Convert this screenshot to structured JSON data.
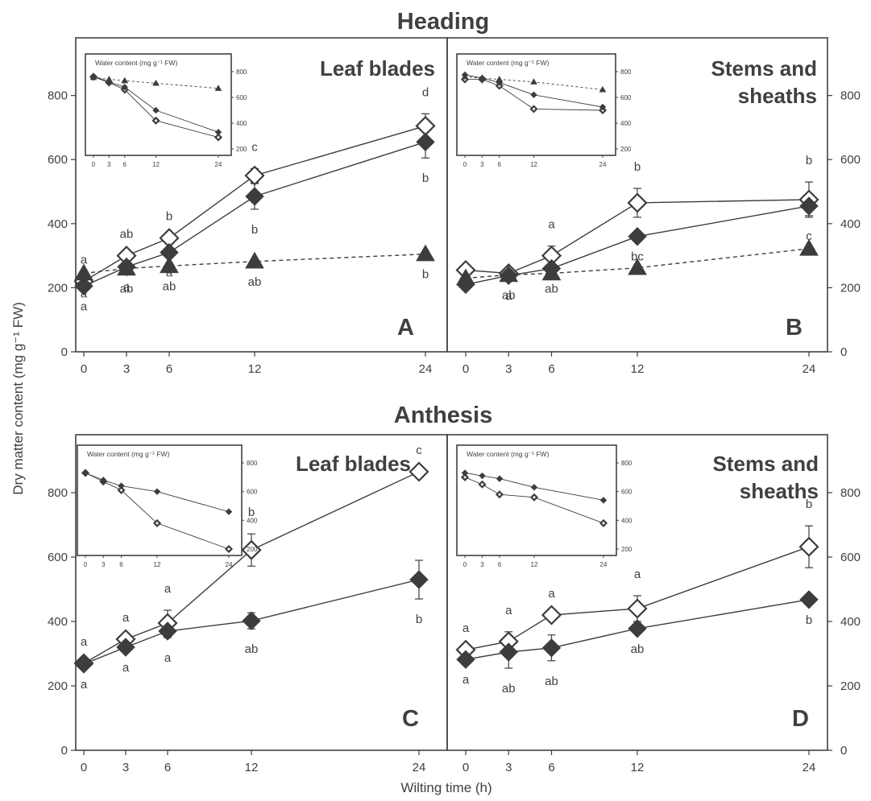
{
  "figure": {
    "xlabel": "Wilting time (h)",
    "ylabel": "Dry matter content (mg g⁻¹ FW)",
    "row_titles": [
      "Heading",
      "Anthesis"
    ]
  },
  "chart_data": [
    {
      "id": "A",
      "row": "Heading",
      "type": "line",
      "title": "Leaf blades",
      "x": [
        0,
        3,
        6,
        12,
        24
      ],
      "xlim": [
        0,
        24
      ],
      "ylim": [
        0,
        980
      ],
      "yticks": [
        0,
        200,
        400,
        600,
        800
      ],
      "series": [
        {
          "marker": "diamond-open",
          "values": [
            220,
            300,
            355,
            550,
            705
          ],
          "err": [
            0,
            0,
            0,
            22,
            38
          ],
          "labels": [
            "a",
            "ab",
            "b",
            "c",
            "d"
          ]
        },
        {
          "marker": "diamond-filled",
          "values": [
            205,
            265,
            310,
            485,
            655
          ],
          "err": [
            0,
            0,
            0,
            40,
            50
          ],
          "labels": [
            "a",
            "a",
            "a",
            "b",
            "b"
          ]
        },
        {
          "marker": "triangle-filled",
          "dashed": true,
          "values": [
            245,
            260,
            268,
            282,
            305
          ],
          "err": [
            0,
            0,
            0,
            0,
            0
          ],
          "labels": [
            "a",
            "ab",
            "ab",
            "ab",
            "b"
          ]
        }
      ],
      "inset": {
        "title": "Water content (mg g⁻¹ FW)",
        "yticks": [
          200,
          400,
          600,
          800
        ],
        "ylim": [
          200,
          800
        ],
        "xticks": [
          0,
          3,
          6,
          12,
          24
        ],
        "series": [
          {
            "marker": "diamond-open",
            "values": [
              760,
              715,
              660,
              420,
              290
            ]
          },
          {
            "marker": "diamond-filled",
            "values": [
              765,
              720,
              680,
              500,
              330
            ]
          },
          {
            "marker": "triangle-filled",
            "dashed": true,
            "values": [
              755,
              740,
              730,
              710,
              670
            ]
          }
        ]
      }
    },
    {
      "id": "B",
      "row": "Heading",
      "type": "line",
      "title": "Stems and sheaths",
      "x": [
        0,
        3,
        6,
        12,
        24
      ],
      "xlim": [
        0,
        24
      ],
      "ylim": [
        0,
        980
      ],
      "yticks": [
        0,
        200,
        400,
        600,
        800
      ],
      "series": [
        {
          "marker": "diamond-open",
          "values": [
            255,
            245,
            300,
            465,
            475
          ],
          "err": [
            0,
            0,
            30,
            45,
            55
          ],
          "labels": [
            "",
            "",
            "a",
            "b",
            "b"
          ]
        },
        {
          "marker": "diamond-filled",
          "values": [
            210,
            238,
            260,
            360,
            455
          ],
          "err": [
            0,
            0,
            0,
            0,
            30
          ],
          "labels": [
            "",
            "a",
            "ab",
            "bc",
            "c"
          ]
        },
        {
          "marker": "triangle-filled",
          "dashed": true,
          "values": [
            230,
            240,
            245,
            262,
            322
          ],
          "err": [
            0,
            0,
            0,
            0,
            0
          ],
          "labels": [
            "",
            "ab",
            "",
            "",
            ""
          ]
        }
      ],
      "inset": {
        "title": "Water content (mg g⁻¹ FW)",
        "yticks": [
          200,
          400,
          600,
          800
        ],
        "ylim": [
          200,
          800
        ],
        "xticks": [
          0,
          3,
          6,
          12,
          24
        ],
        "series": [
          {
            "marker": "diamond-open",
            "values": [
              740,
              740,
              690,
              510,
              500
            ]
          },
          {
            "marker": "diamond-filled",
            "values": [
              775,
              750,
              715,
              620,
              525
            ]
          },
          {
            "marker": "triangle-filled",
            "dashed": true,
            "values": [
              760,
              750,
              740,
              720,
              660
            ]
          }
        ]
      }
    },
    {
      "id": "C",
      "row": "Anthesis",
      "type": "line",
      "title": "Leaf blades",
      "x": [
        0,
        3,
        6,
        12,
        24
      ],
      "xlim": [
        0,
        24
      ],
      "ylim": [
        0,
        980
      ],
      "yticks": [
        0,
        200,
        400,
        600,
        800
      ],
      "series": [
        {
          "marker": "diamond-open",
          "values": [
            270,
            345,
            395,
            622,
            865
          ],
          "err": [
            0,
            0,
            40,
            50,
            0
          ],
          "labels": [
            "a",
            "a",
            "a",
            "b",
            "c"
          ]
        },
        {
          "marker": "diamond-filled",
          "values": [
            268,
            320,
            370,
            402,
            530
          ],
          "err": [
            0,
            0,
            20,
            25,
            60
          ],
          "labels": [
            "a",
            "a",
            "a",
            "ab",
            "b"
          ]
        }
      ],
      "inset": {
        "title": "Water content (mg g⁻¹ FW)",
        "yticks": [
          200,
          400,
          600,
          800
        ],
        "ylim": [
          200,
          800
        ],
        "xticks": [
          0,
          3,
          6,
          12,
          24
        ],
        "series": [
          {
            "marker": "diamond-open",
            "values": [
              730,
              670,
              610,
              380,
              200
            ]
          },
          {
            "marker": "diamond-filled",
            "values": [
              730,
              680,
              640,
              600,
              460
            ]
          }
        ]
      }
    },
    {
      "id": "D",
      "row": "Anthesis",
      "type": "line",
      "title": "Stems and sheaths",
      "x": [
        0,
        3,
        6,
        12,
        24
      ],
      "xlim": [
        0,
        24
      ],
      "ylim": [
        0,
        980
      ],
      "yticks": [
        0,
        200,
        400,
        600,
        800
      ],
      "series": [
        {
          "marker": "diamond-open",
          "values": [
            312,
            338,
            420,
            440,
            632
          ],
          "err": [
            0,
            30,
            0,
            40,
            65
          ],
          "labels": [
            "a",
            "a",
            "a",
            "a",
            "b"
          ]
        },
        {
          "marker": "diamond-filled",
          "values": [
            282,
            305,
            318,
            378,
            468
          ],
          "err": [
            0,
            50,
            40,
            0,
            0
          ],
          "labels": [
            "a",
            "ab",
            "ab",
            "ab",
            "b"
          ]
        }
      ],
      "inset": {
        "title": "Water content (mg g⁻¹ FW)",
        "yticks": [
          200,
          400,
          600,
          800
        ],
        "ylim": [
          200,
          800
        ],
        "xticks": [
          0,
          3,
          6,
          12,
          24
        ],
        "series": [
          {
            "marker": "diamond-open",
            "values": [
              700,
              650,
              580,
              560,
              380
            ]
          },
          {
            "marker": "diamond-filled",
            "values": [
              730,
              710,
              690,
              630,
              540
            ]
          }
        ]
      }
    }
  ]
}
